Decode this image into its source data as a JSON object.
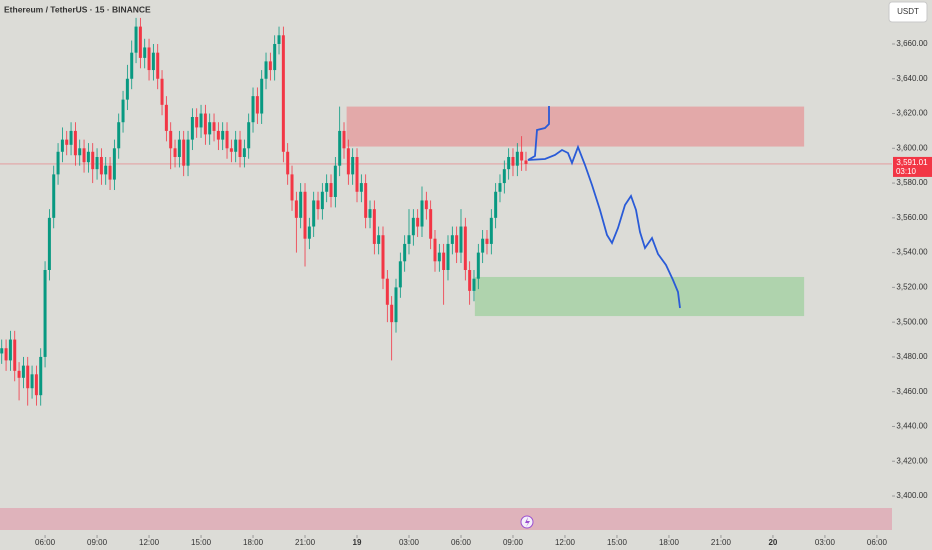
{
  "chart_data": {
    "type": "candlestick",
    "title": "Ethereum / TetherUS · 15 · BINANCE",
    "currency_button": "USDT",
    "up_color": "#089981",
    "down_color": "#f23645",
    "grid": false,
    "xlim": [
      3.4,
      54.87
    ],
    "ylim": [
      3374.7,
      3685.3
    ],
    "xticks": [
      {
        "value": 6,
        "label": "06:00"
      },
      {
        "value": 9,
        "label": "09:00"
      },
      {
        "value": 12,
        "label": "12:00"
      },
      {
        "value": 15,
        "label": "15:00"
      },
      {
        "value": 18,
        "label": "18:00"
      },
      {
        "value": 21,
        "label": "21:00"
      },
      {
        "value": 24,
        "label": "19"
      },
      {
        "value": 27,
        "label": "03:00"
      },
      {
        "value": 30,
        "label": "06:00"
      },
      {
        "value": 33,
        "label": "09:00"
      },
      {
        "value": 36,
        "label": "12:00"
      },
      {
        "value": 39,
        "label": "15:00"
      },
      {
        "value": 42,
        "label": "18:00"
      },
      {
        "value": 45,
        "label": "21:00"
      },
      {
        "value": 48,
        "label": "20"
      },
      {
        "value": 51,
        "label": "03:00"
      },
      {
        "value": 54,
        "label": "06:00"
      }
    ],
    "yticks": [
      {
        "value": 3400,
        "label": "3,400.00"
      },
      {
        "value": 3420,
        "label": "3,420.00"
      },
      {
        "value": 3440,
        "label": "3,440.00"
      },
      {
        "value": 3460,
        "label": "3,460.00"
      },
      {
        "value": 3480,
        "label": "3,480.00"
      },
      {
        "value": 3500,
        "label": "3,500.00"
      },
      {
        "value": 3520,
        "label": "3,520.00"
      },
      {
        "value": 3540,
        "label": "3,540.00"
      },
      {
        "value": 3560,
        "label": "3,560.00"
      },
      {
        "value": 3580,
        "label": "3,580.00"
      },
      {
        "value": 3600,
        "label": "3,600.00"
      },
      {
        "value": 3620,
        "label": "3,620.00"
      },
      {
        "value": 3640,
        "label": "3,640.00"
      },
      {
        "value": 3660,
        "label": "3,660.00"
      }
    ],
    "price_tag": {
      "value": 3591.01,
      "label": "3,591.01"
    },
    "countdown": "03:10",
    "zones": [
      {
        "x": [
          23.4,
          49.8
        ],
        "y": [
          3601,
          3624
        ],
        "color": "#e3a9a9"
      },
      {
        "x": [
          30.8,
          49.8
        ],
        "y": [
          3503.5,
          3526
        ],
        "color": "#afd3ad"
      }
    ],
    "x": [
      3.5,
      3.75,
      4,
      4.25,
      4.5,
      4.75,
      5,
      5.25,
      5.5,
      5.75,
      6,
      6.25,
      6.5,
      6.75,
      7,
      7.25,
      7.5,
      7.75,
      8,
      8.25,
      8.5,
      8.75,
      9,
      9.25,
      9.5,
      9.75,
      10,
      10.25,
      10.5,
      10.75,
      11,
      11.25,
      11.5,
      11.75,
      12,
      12.25,
      12.5,
      12.75,
      13,
      13.25,
      13.5,
      13.75,
      14,
      14.25,
      14.5,
      14.75,
      15,
      15.25,
      15.5,
      15.75,
      16,
      16.25,
      16.5,
      16.75,
      17,
      17.25,
      17.5,
      17.75,
      18,
      18.25,
      18.5,
      18.75,
      19,
      19.25,
      19.5,
      19.75,
      20,
      20.25,
      20.5,
      20.75,
      21,
      21.25,
      21.5,
      21.75,
      22,
      22.25,
      22.5,
      22.75,
      23,
      23.25,
      23.5,
      23.75,
      24,
      24.25,
      24.5,
      24.75,
      25,
      25.25,
      25.5,
      25.75,
      26,
      26.25,
      26.5,
      26.75,
      27,
      27.25,
      27.5,
      27.75,
      28,
      28.25,
      28.5,
      28.75,
      29,
      29.25,
      29.5,
      29.75,
      30,
      30.25,
      30.5,
      30.75,
      31,
      31.25,
      31.5,
      31.75,
      32,
      32.25,
      32.5,
      32.75,
      33,
      33.25,
      33.5,
      33.75
    ],
    "open": [
      3482,
      3485,
      3478,
      3490,
      3472,
      3468,
      3475,
      3462,
      3470,
      3458,
      3480,
      3530,
      3560,
      3585,
      3598,
      3605,
      3602,
      3610,
      3596,
      3600,
      3592,
      3598,
      3588,
      3595,
      3585,
      3590,
      3582,
      3600,
      3615,
      3628,
      3640,
      3655,
      3670,
      3652,
      3658,
      3645,
      3655,
      3640,
      3625,
      3610,
      3600,
      3595,
      3605,
      3590,
      3605,
      3618,
      3612,
      3620,
      3608,
      3615,
      3610,
      3605,
      3610,
      3600,
      3598,
      3605,
      3595,
      3600,
      3615,
      3630,
      3620,
      3640,
      3650,
      3645,
      3660,
      3665,
      3598,
      3585,
      3570,
      3560,
      3575,
      3548,
      3555,
      3570,
      3565,
      3575,
      3580,
      3572,
      3590,
      3610,
      3600,
      3585,
      3595,
      3575,
      3580,
      3560,
      3565,
      3545,
      3550,
      3525,
      3510,
      3500,
      3520,
      3535,
      3545,
      3550,
      3560,
      3555,
      3570,
      3565,
      3548,
      3535,
      3540,
      3530,
      3545,
      3550,
      3540,
      3555,
      3530,
      3518,
      3525,
      3540,
      3548,
      3545,
      3560,
      3575,
      3580,
      3588,
      3595,
      3590,
      3598,
      3593
    ],
    "high": [
      3490,
      3490,
      3495,
      3495,
      3477,
      3480,
      3480,
      3475,
      3475,
      3485,
      3535,
      3565,
      3590,
      3603,
      3612,
      3610,
      3615,
      3615,
      3605,
      3605,
      3603,
      3603,
      3600,
      3600,
      3595,
      3595,
      3605,
      3620,
      3633,
      3648,
      3662,
      3675,
      3675,
      3663,
      3663,
      3660,
      3660,
      3645,
      3630,
      3615,
      3605,
      3610,
      3610,
      3610,
      3623,
      3623,
      3625,
      3625,
      3620,
      3620,
      3615,
      3615,
      3615,
      3605,
      3610,
      3610,
      3605,
      3620,
      3635,
      3635,
      3645,
      3655,
      3655,
      3665,
      3670,
      3670,
      3603,
      3590,
      3575,
      3580,
      3580,
      3560,
      3575,
      3575,
      3580,
      3585,
      3585,
      3595,
      3624,
      3615,
      3605,
      3600,
      3600,
      3585,
      3585,
      3570,
      3570,
      3555,
      3555,
      3530,
      3515,
      3525,
      3540,
      3550,
      3565,
      3565,
      3565,
      3578,
      3575,
      3570,
      3553,
      3545,
      3545,
      3550,
      3555,
      3555,
      3565,
      3560,
      3535,
      3530,
      3545,
      3553,
      3553,
      3565,
      3580,
      3585,
      3593,
      3600,
      3600,
      3603,
      3607,
      3598
    ],
    "low": [
      3476,
      3472,
      3472,
      3466,
      3455,
      3462,
      3452,
      3456,
      3452,
      3452,
      3474,
      3524,
      3554,
      3579,
      3592,
      3596,
      3596,
      3590,
      3590,
      3586,
      3586,
      3580,
      3582,
      3579,
      3579,
      3576,
      3576,
      3594,
      3609,
      3622,
      3634,
      3649,
      3646,
      3646,
      3639,
      3639,
      3634,
      3619,
      3604,
      3588,
      3589,
      3589,
      3584,
      3584,
      3599,
      3606,
      3606,
      3602,
      3602,
      3604,
      3599,
      3599,
      3594,
      3592,
      3592,
      3589,
      3589,
      3594,
      3609,
      3614,
      3614,
      3634,
      3639,
      3639,
      3654,
      3592,
      3579,
      3564,
      3540,
      3554,
      3532,
      3542,
      3549,
      3559,
      3559,
      3569,
      3566,
      3566,
      3584,
      3594,
      3579,
      3579,
      3569,
      3569,
      3554,
      3554,
      3539,
      3539,
      3519,
      3500,
      3478,
      3494,
      3514,
      3529,
      3539,
      3544,
      3549,
      3549,
      3559,
      3542,
      3529,
      3529,
      3510,
      3524,
      3539,
      3534,
      3534,
      3524,
      3510,
      3512,
      3519,
      3534,
      3539,
      3539,
      3554,
      3569,
      3574,
      3582,
      3584,
      3584,
      3587,
      3587
    ],
    "close": [
      3485,
      3478,
      3490,
      3472,
      3468,
      3475,
      3462,
      3470,
      3458,
      3480,
      3530,
      3560,
      3585,
      3598,
      3605,
      3602,
      3610,
      3596,
      3600,
      3592,
      3598,
      3588,
      3595,
      3585,
      3590,
      3582,
      3600,
      3615,
      3628,
      3640,
      3655,
      3670,
      3652,
      3658,
      3645,
      3655,
      3640,
      3625,
      3610,
      3600,
      3595,
      3605,
      3590,
      3605,
      3618,
      3612,
      3620,
      3608,
      3615,
      3610,
      3605,
      3610,
      3600,
      3598,
      3605,
      3595,
      3600,
      3615,
      3630,
      3620,
      3640,
      3650,
      3645,
      3660,
      3665,
      3598,
      3585,
      3570,
      3560,
      3575,
      3548,
      3555,
      3570,
      3565,
      3575,
      3580,
      3572,
      3590,
      3610,
      3600,
      3585,
      3595,
      3575,
      3580,
      3560,
      3565,
      3545,
      3550,
      3525,
      3510,
      3500,
      3520,
      3535,
      3545,
      3550,
      3560,
      3555,
      3570,
      3565,
      3548,
      3535,
      3540,
      3530,
      3545,
      3550,
      3540,
      3555,
      3530,
      3518,
      3525,
      3540,
      3548,
      3545,
      3560,
      3575,
      3580,
      3588,
      3595,
      3590,
      3598,
      3593,
      3591.01
    ]
  }
}
